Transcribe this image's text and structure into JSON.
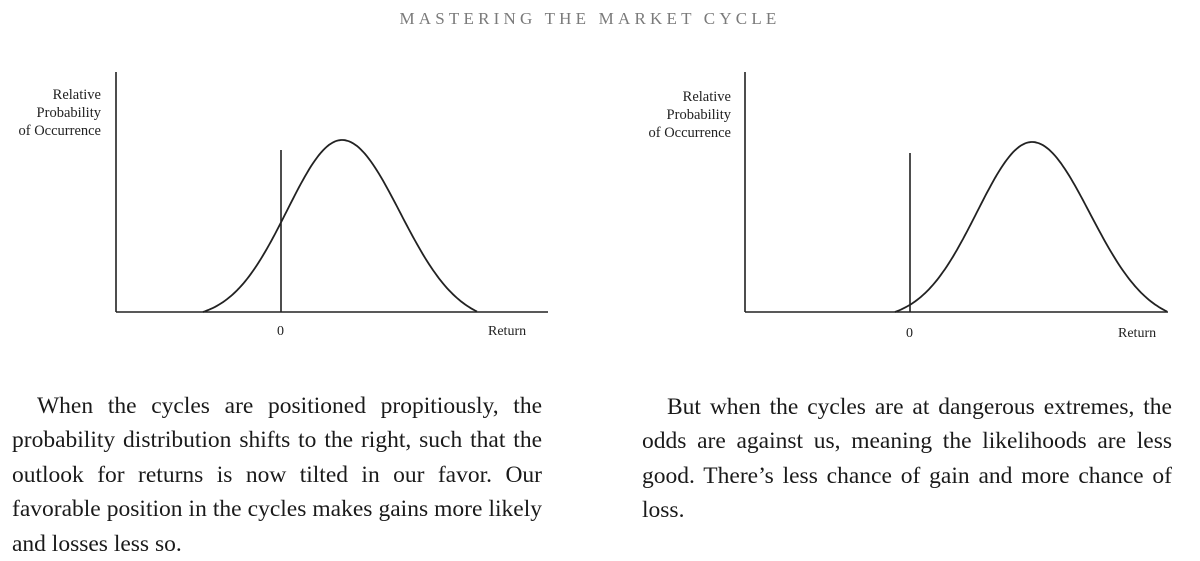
{
  "header": {
    "running_head": "MASTERING THE MARKET CYCLE"
  },
  "figures": [
    {
      "ylabel_lines": [
        "Relative",
        "Probability",
        "of Occurrence"
      ],
      "zero_tick": "0",
      "xlabel": "Return"
    },
    {
      "ylabel_lines": [
        "Relative",
        "Probability",
        "of Occurrence"
      ],
      "zero_tick": "0",
      "xlabel": "Return"
    }
  ],
  "captions": [
    "When the cycles are positioned propitiously, the probability distribution shifts to the right, such that the outlook for returns is now tilted in our favor. Our favorable position in the cycles makes gains more likely and losses less so.",
    "But when the cycles are at dangerous extremes, the odds are against us, meaning the likelihoods are less good. There’s less chance of gain and more chance of loss."
  ]
}
